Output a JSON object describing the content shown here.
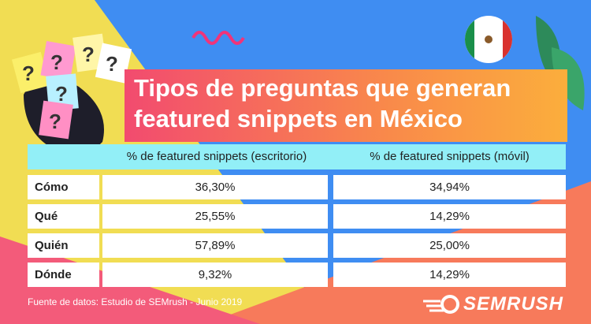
{
  "title": [
    "Tipos de preguntas que generan",
    "featured snippets en México"
  ],
  "table": {
    "columns": [
      "% de featured snippets (escritorio)",
      "% de featured snippets (móvil)"
    ],
    "rows": [
      [
        "Cómo",
        "36,30%",
        "34,94%"
      ],
      [
        "Qué",
        "25,55%",
        "14,29%"
      ],
      [
        "Quién",
        "57,89%",
        "25,00%"
      ],
      [
        "Dónde",
        "9,32%",
        "14,29%"
      ]
    ]
  },
  "source": "Fuente de datos: Estudio de SEMrush - Junio 2019",
  "brand": "SEMRUSH"
}
